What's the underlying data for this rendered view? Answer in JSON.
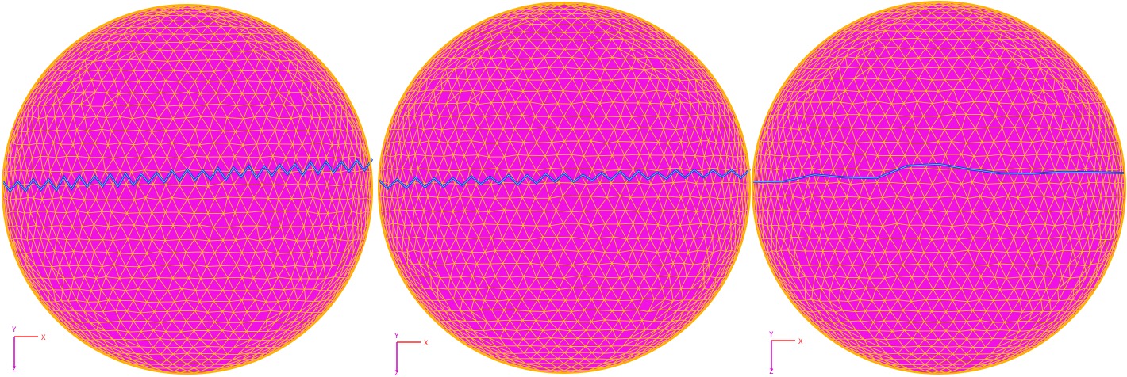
{
  "colors": {
    "surface": "#f012e4",
    "mesh": "#ffc21a",
    "outline": "#ffb000",
    "equator": "#2233d8",
    "equator_highlight": "#5ad6ff",
    "axis_x": "#ff2a2a",
    "axis_y": "#d400c8",
    "axis_z": "#d400c8"
  },
  "axis_labels": {
    "x": "X",
    "y": "Y",
    "z": "Z"
  },
  "panels": [
    {
      "equator_style": "dense-zigzag",
      "equator_amplitude": 14,
      "equator_teeth": 48
    },
    {
      "equator_style": "medium-zigzag",
      "equator_amplitude": 10,
      "equator_teeth": 40
    },
    {
      "equator_style": "smooth",
      "equator_amplitude": 6,
      "equator_teeth": 12
    }
  ]
}
